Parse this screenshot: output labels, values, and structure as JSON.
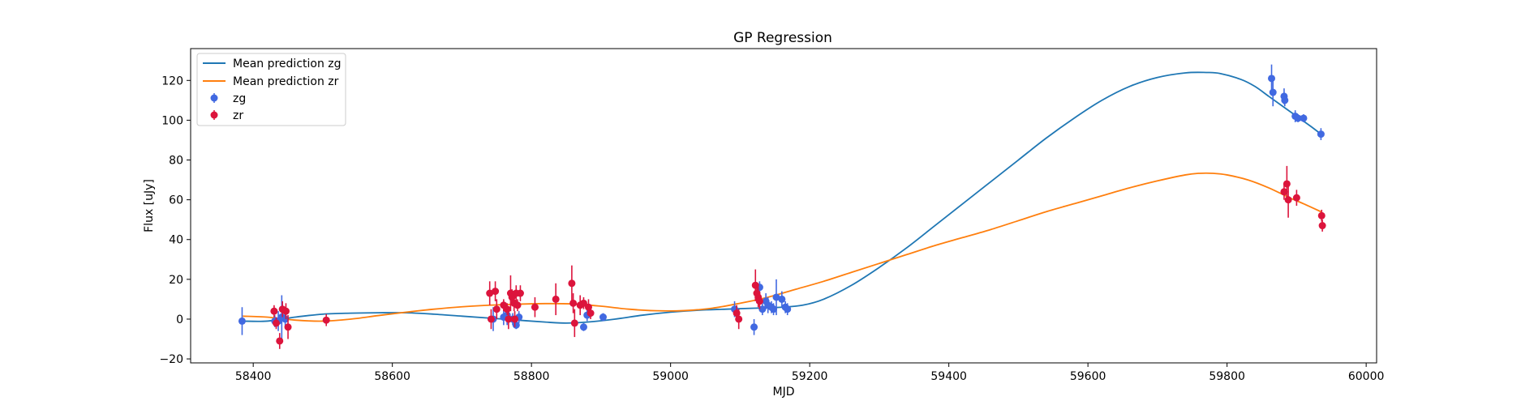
{
  "chart_data": {
    "type": "scatter",
    "title": "GP Regression",
    "xlabel": "MJD",
    "ylabel": "Flux [uJy]",
    "xlim": [
      58310,
      60015
    ],
    "ylim": [
      -22,
      136
    ],
    "xticks": [
      58400,
      58600,
      58800,
      59000,
      59200,
      59400,
      59600,
      59800,
      60000
    ],
    "yticks": [
      -20,
      0,
      20,
      40,
      60,
      80,
      100,
      120
    ],
    "grid": false,
    "legend_position": "top-left",
    "legend": [
      "Mean prediction zg",
      "Mean prediction zr",
      "zg",
      "zr"
    ],
    "series": [
      {
        "name": "Mean prediction zg",
        "kind": "line",
        "color": "#1f77b4",
        "x": [
          58385,
          58420,
          58460,
          58500,
          58540,
          58580,
          58620,
          58660,
          58700,
          58740,
          58780,
          58820,
          58850,
          58880,
          58920,
          58960,
          59000,
          59040,
          59080,
          59120,
          59160,
          59190,
          59220,
          59260,
          59300,
          59340,
          59380,
          59420,
          59460,
          59500,
          59540,
          59580,
          59620,
          59660,
          59700,
          59740,
          59770,
          59790,
          59820,
          59840,
          59860,
          59880,
          59900,
          59920,
          59935
        ],
        "y": [
          -1,
          -1,
          1,
          2.5,
          3,
          3.2,
          3.2,
          2.5,
          1.5,
          0.5,
          -0.5,
          -1.5,
          -2,
          -1.5,
          0,
          2,
          3.5,
          4.5,
          5,
          5.5,
          6,
          7,
          10,
          17,
          26,
          36,
          47,
          58,
          69,
          80,
          91,
          101,
          110,
          117,
          121.5,
          123.8,
          124,
          123.5,
          120.5,
          117,
          112,
          107,
          102,
          97,
          93
        ]
      },
      {
        "name": "Mean prediction zr",
        "kind": "line",
        "color": "#ff7f0e",
        "x": [
          58385,
          58420,
          58460,
          58500,
          58540,
          58580,
          58620,
          58660,
          58700,
          58740,
          58780,
          58820,
          58860,
          58900,
          58940,
          58980,
          59020,
          59060,
          59100,
          59140,
          59180,
          59220,
          59260,
          59300,
          59340,
          59380,
          59420,
          59460,
          59500,
          59540,
          59580,
          59620,
          59660,
          59700,
          59740,
          59760,
          59780,
          59800,
          59830,
          59860,
          59890,
          59910,
          59935
        ],
        "y": [
          1.5,
          1,
          -0.5,
          -1,
          0,
          1.8,
          3.5,
          5,
          6.2,
          7,
          7.5,
          7.8,
          7.6,
          6.5,
          5,
          4.2,
          4.3,
          5.5,
          8,
          11,
          15,
          19,
          23.5,
          28,
          32.5,
          37,
          41,
          45,
          49.5,
          54,
          58,
          62,
          66,
          69.5,
          72.5,
          73.3,
          73.3,
          72.5,
          70,
          66,
          61,
          58,
          54
        ]
      },
      {
        "name": "zg",
        "kind": "errorbar",
        "color": "#4169e1",
        "points": [
          [
            58384,
            -1,
            7
          ],
          [
            58431,
            -1,
            3
          ],
          [
            58436,
            -1,
            5
          ],
          [
            58441,
            1,
            11
          ],
          [
            58446,
            0,
            4
          ],
          [
            58745,
            0,
            6
          ],
          [
            58760,
            1,
            4
          ],
          [
            58765,
            2,
            5
          ],
          [
            58773,
            0,
            3
          ],
          [
            58778,
            -3,
            2
          ],
          [
            58782,
            1,
            3
          ],
          [
            58875,
            -4,
            2
          ],
          [
            58880,
            2,
            3
          ],
          [
            58903,
            1,
            2
          ],
          [
            59092,
            5,
            4
          ],
          [
            59120,
            -4,
            4
          ],
          [
            59128,
            16,
            3
          ],
          [
            59132,
            5,
            3
          ],
          [
            59137,
            9,
            4
          ],
          [
            59140,
            7,
            4
          ],
          [
            59145,
            6,
            3
          ],
          [
            59148,
            5,
            3
          ],
          [
            59152,
            11,
            9
          ],
          [
            59160,
            10,
            4
          ],
          [
            59165,
            6,
            3
          ],
          [
            59168,
            5,
            3
          ],
          [
            59864,
            121,
            7
          ],
          [
            59866,
            114,
            7
          ],
          [
            59882,
            112,
            4
          ],
          [
            59883,
            110,
            3
          ],
          [
            59898,
            102,
            3
          ],
          [
            59902,
            101,
            2
          ],
          [
            59910,
            101,
            2
          ],
          [
            59935,
            93,
            3
          ]
        ]
      },
      {
        "name": "zr",
        "kind": "errorbar",
        "color": "#dc143c",
        "points": [
          [
            58430,
            4,
            3
          ],
          [
            58433,
            -2,
            3
          ],
          [
            58438,
            -11,
            4
          ],
          [
            58442,
            5,
            4
          ],
          [
            58447,
            4,
            4
          ],
          [
            58450,
            -4,
            6
          ],
          [
            58505,
            -0.5,
            3
          ],
          [
            58740,
            13,
            6
          ],
          [
            58742,
            0,
            5
          ],
          [
            58748,
            14,
            5
          ],
          [
            58750,
            5,
            5
          ],
          [
            58760,
            7,
            3
          ],
          [
            58765,
            5,
            3
          ],
          [
            58767,
            0,
            5
          ],
          [
            58770,
            13,
            9
          ],
          [
            58772,
            11,
            4
          ],
          [
            58775,
            8,
            4
          ],
          [
            58776,
            0,
            4
          ],
          [
            58778,
            13,
            4
          ],
          [
            58780,
            7,
            3
          ],
          [
            58784,
            13,
            4
          ],
          [
            58805,
            6,
            5
          ],
          [
            58835,
            10,
            8
          ],
          [
            58858,
            18,
            9
          ],
          [
            58860,
            8,
            5
          ],
          [
            58862,
            -2,
            7
          ],
          [
            58870,
            7,
            5
          ],
          [
            58875,
            8,
            3
          ],
          [
            58882,
            6,
            4
          ],
          [
            58885,
            3,
            3
          ],
          [
            59095,
            3,
            4
          ],
          [
            59098,
            0,
            5
          ],
          [
            59122,
            17,
            8
          ],
          [
            59124,
            13,
            5
          ],
          [
            59126,
            11,
            5
          ],
          [
            59128,
            9,
            4
          ],
          [
            59882,
            64,
            4
          ],
          [
            59886,
            68,
            9
          ],
          [
            59888,
            60,
            9
          ],
          [
            59900,
            61,
            4
          ],
          [
            59936,
            52,
            3
          ],
          [
            59937,
            47,
            3
          ]
        ]
      }
    ]
  }
}
